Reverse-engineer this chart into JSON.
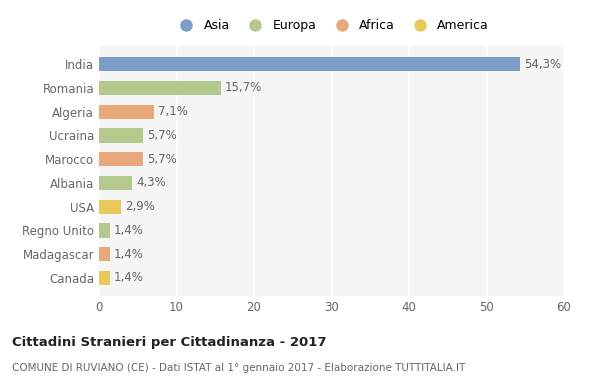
{
  "categories": [
    "India",
    "Romania",
    "Algeria",
    "Ucraina",
    "Marocco",
    "Albania",
    "USA",
    "Regno Unito",
    "Madagascar",
    "Canada"
  ],
  "values": [
    54.3,
    15.7,
    7.1,
    5.7,
    5.7,
    4.3,
    2.9,
    1.4,
    1.4,
    1.4
  ],
  "labels": [
    "54,3%",
    "15,7%",
    "7,1%",
    "5,7%",
    "5,7%",
    "4,3%",
    "2,9%",
    "1,4%",
    "1,4%",
    "1,4%"
  ],
  "colors": [
    "#7b9ec8",
    "#b5c98e",
    "#e8a87c",
    "#b5c98e",
    "#e8a87c",
    "#b5c98e",
    "#e8c95a",
    "#b5c98e",
    "#e8a87c",
    "#e8c95a"
  ],
  "legend": [
    {
      "label": "Asia",
      "color": "#7b9ec8"
    },
    {
      "label": "Europa",
      "color": "#b5c98e"
    },
    {
      "label": "Africa",
      "color": "#e8a87c"
    },
    {
      "label": "America",
      "color": "#e8c95a"
    }
  ],
  "title": "Cittadini Stranieri per Cittadinanza - 2017",
  "subtitle": "COMUNE DI RUVIANO (CE) - Dati ISTAT al 1° gennaio 2017 - Elaborazione TUTTITALIA.IT",
  "xlim": [
    0,
    60
  ],
  "xticks": [
    0,
    10,
    20,
    30,
    40,
    50,
    60
  ],
  "bg_color": "#ffffff",
  "plot_bg_color": "#f5f5f5",
  "grid_color": "#ffffff",
  "bar_height": 0.6,
  "label_fontsize": 8.5,
  "ytick_fontsize": 8.5,
  "xtick_fontsize": 8.5
}
